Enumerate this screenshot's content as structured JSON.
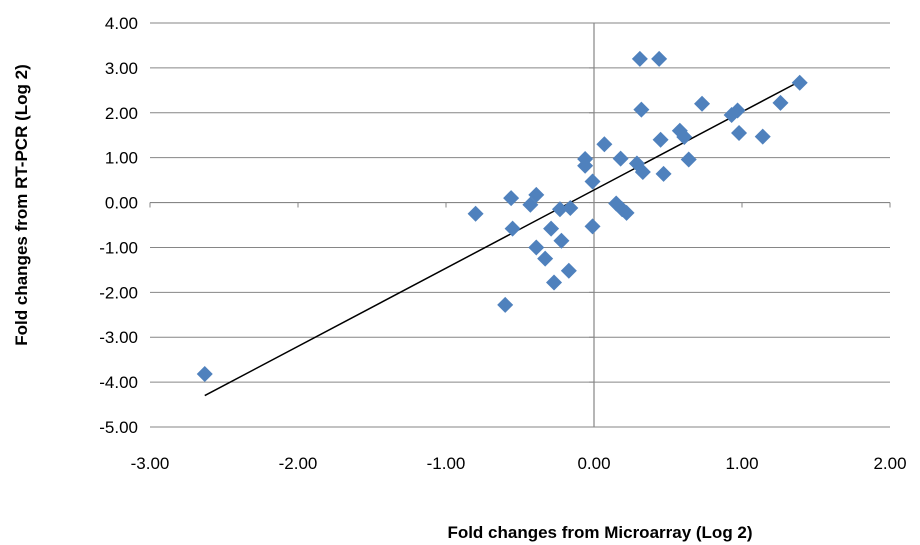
{
  "chart_data": {
    "type": "scatter",
    "title": "",
    "xlabel": "Fold changes from Microarray (Log 2)",
    "ylabel": "Fold changes from RT-PCR (Log 2)",
    "xlim": [
      -3.0,
      2.0
    ],
    "ylim": [
      -5.0,
      4.0
    ],
    "x_ticks": [
      "-3.00",
      "-2.00",
      "-1.00",
      "0.00",
      "1.00",
      "2.00"
    ],
    "y_ticks": [
      "4.00",
      "3.00",
      "2.00",
      "1.00",
      "0.00",
      "-1.00",
      "-2.00",
      "-3.00",
      "-4.00",
      "-5.00"
    ],
    "grid": "horizontal",
    "marker_color": "#4F81BD",
    "trendline": {
      "type": "linear",
      "x": [
        -2.63,
        1.39
      ],
      "y": [
        -4.3,
        2.7
      ]
    },
    "points": [
      {
        "x": -2.63,
        "y": -3.82
      },
      {
        "x": -0.8,
        "y": -0.25
      },
      {
        "x": -0.6,
        "y": -2.28
      },
      {
        "x": -0.56,
        "y": 0.1
      },
      {
        "x": -0.55,
        "y": -0.58
      },
      {
        "x": -0.43,
        "y": -0.05
      },
      {
        "x": -0.39,
        "y": 0.17
      },
      {
        "x": -0.39,
        "y": -1.0
      },
      {
        "x": -0.33,
        "y": -1.25
      },
      {
        "x": -0.29,
        "y": -0.58
      },
      {
        "x": -0.27,
        "y": -1.78
      },
      {
        "x": -0.23,
        "y": -0.15
      },
      {
        "x": -0.22,
        "y": -0.85
      },
      {
        "x": -0.17,
        "y": -1.52
      },
      {
        "x": -0.16,
        "y": -0.12
      },
      {
        "x": -0.06,
        "y": 0.97
      },
      {
        "x": -0.06,
        "y": 0.82
      },
      {
        "x": -0.01,
        "y": 0.47
      },
      {
        "x": -0.01,
        "y": -0.53
      },
      {
        "x": 0.07,
        "y": 1.3
      },
      {
        "x": 0.15,
        "y": -0.02
      },
      {
        "x": 0.18,
        "y": 0.98
      },
      {
        "x": 0.19,
        "y": -0.15
      },
      {
        "x": 0.22,
        "y": -0.23
      },
      {
        "x": 0.29,
        "y": 0.87
      },
      {
        "x": 0.31,
        "y": 3.2
      },
      {
        "x": 0.32,
        "y": 2.07
      },
      {
        "x": 0.33,
        "y": 0.68
      },
      {
        "x": 0.44,
        "y": 3.2
      },
      {
        "x": 0.45,
        "y": 1.4
      },
      {
        "x": 0.47,
        "y": 0.64
      },
      {
        "x": 0.58,
        "y": 1.6
      },
      {
        "x": 0.61,
        "y": 1.46
      },
      {
        "x": 0.64,
        "y": 0.96
      },
      {
        "x": 0.73,
        "y": 2.2
      },
      {
        "x": 0.93,
        "y": 1.95
      },
      {
        "x": 0.97,
        "y": 2.05
      },
      {
        "x": 0.98,
        "y": 1.55
      },
      {
        "x": 1.14,
        "y": 1.47
      },
      {
        "x": 1.26,
        "y": 2.22
      },
      {
        "x": 1.39,
        "y": 2.67
      }
    ]
  }
}
